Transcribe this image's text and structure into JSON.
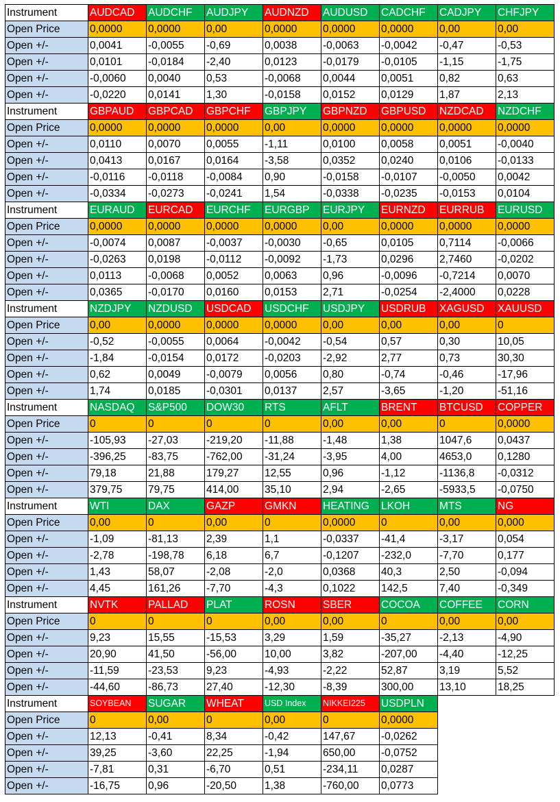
{
  "labels": {
    "instrument": "Instrument",
    "open_price": "Open Price",
    "delta": "Open +/-"
  },
  "colors": {
    "red": "#ff0000",
    "green": "#00b050",
    "open_price": "#ffc000",
    "label_blue": "#c5d9f1"
  },
  "blocks": [
    {
      "instruments": [
        {
          "name": "AUDCAD",
          "color": "red"
        },
        {
          "name": "AUDCHF",
          "color": "green"
        },
        {
          "name": "AUDJPY",
          "color": "green"
        },
        {
          "name": "AUDNZD",
          "color": "red"
        },
        {
          "name": "AUDUSD",
          "color": "green"
        },
        {
          "name": "CADCHF",
          "color": "green"
        },
        {
          "name": "CADJPY",
          "color": "green"
        },
        {
          "name": "CHFJPY",
          "color": "green"
        }
      ],
      "open_price": [
        "0,0000",
        "0,0000",
        "0,00",
        "0,0000",
        "0,0000",
        "0,0000",
        "0,00",
        "0,00"
      ],
      "deltas": [
        [
          "0,0041",
          "-0,0055",
          "-0,69",
          "0,0038",
          "-0,0063",
          "-0,0042",
          "-0,47",
          "-0,53"
        ],
        [
          "0,0101",
          "-0,0184",
          "-2,40",
          "0,0123",
          "-0,0179",
          "-0,0105",
          "-1,15",
          "-1,75"
        ],
        [
          "-0,0060",
          "0,0040",
          "0,53",
          "-0,0068",
          "0,0044",
          "0,0051",
          "0,82",
          "0,63"
        ],
        [
          "-0,0220",
          "0,0141",
          "1,30",
          "-0,0158",
          "0,0152",
          "0,0129",
          "1,87",
          "2,13"
        ]
      ]
    },
    {
      "instruments": [
        {
          "name": "GBPAUD",
          "color": "red"
        },
        {
          "name": "GBPCAD",
          "color": "red"
        },
        {
          "name": "GBPCHF",
          "color": "red"
        },
        {
          "name": "GBPJPY",
          "color": "green"
        },
        {
          "name": "GBPNZD",
          "color": "red"
        },
        {
          "name": "GBPUSD",
          "color": "red"
        },
        {
          "name": "NZDCAD",
          "color": "red"
        },
        {
          "name": "NZDCHF",
          "color": "green"
        }
      ],
      "open_price": [
        "0,0000",
        "0,0000",
        "0,0000",
        "0,00",
        "0,0000",
        "0,0000",
        "0,0000",
        "0,0000"
      ],
      "deltas": [
        [
          "0,0110",
          "0,0070",
          "0,0055",
          "-1,11",
          "0,0100",
          "0,0058",
          "0,0051",
          "-0,0040"
        ],
        [
          "0,0413",
          "0,0167",
          "0,0164",
          "-3,58",
          "0,0352",
          "0,0240",
          "0,0106",
          "-0,0133"
        ],
        [
          "-0,0116",
          "-0,0118",
          "-0,0084",
          "0,90",
          "-0,0158",
          "-0,0107",
          "-0,0050",
          "0,0042"
        ],
        [
          "-0,0334",
          "-0,0273",
          "-0,0241",
          "1,54",
          "-0,0338",
          "-0,0235",
          "-0,0153",
          "0,0104"
        ]
      ]
    },
    {
      "instruments": [
        {
          "name": "EURAUD",
          "color": "green"
        },
        {
          "name": "EURCAD",
          "color": "red"
        },
        {
          "name": "EURCHF",
          "color": "green"
        },
        {
          "name": "EURGBP",
          "color": "green"
        },
        {
          "name": "EURJPY",
          "color": "green"
        },
        {
          "name": "EURNZD",
          "color": "red"
        },
        {
          "name": "EURRUB",
          "color": "red"
        },
        {
          "name": "EURUSD",
          "color": "green"
        }
      ],
      "open_price": [
        "0,0000",
        "0,0000",
        "0,0000",
        "0,0000",
        "0,00",
        "0,0000",
        "0,0000",
        "0,0000"
      ],
      "deltas": [
        [
          "-0,0074",
          "0,0087",
          "-0,0037",
          "-0,0030",
          "-0,65",
          "0,0105",
          "0,7114",
          "-0,0066"
        ],
        [
          "-0,0263",
          "0,0198",
          "-0,0112",
          "-0,0092",
          "-1,73",
          "0,0296",
          "2,7460",
          "-0,0202"
        ],
        [
          "0,0113",
          "-0,0068",
          "0,0052",
          "0,0063",
          "0,96",
          "-0,0096",
          "-0,7214",
          "0,0070"
        ],
        [
          "0,0365",
          "-0,0170",
          "0,0160",
          "0,0153",
          "2,71",
          "-0,0254",
          "-2,4000",
          "0,0228"
        ]
      ]
    },
    {
      "instruments": [
        {
          "name": "NZDJPY",
          "color": "green"
        },
        {
          "name": "NZDUSD",
          "color": "green"
        },
        {
          "name": "USDCAD",
          "color": "red"
        },
        {
          "name": "USDCHF",
          "color": "green"
        },
        {
          "name": "USDJPY",
          "color": "green"
        },
        {
          "name": "USDRUB",
          "color": "red"
        },
        {
          "name": "XAGUSD",
          "color": "red"
        },
        {
          "name": "XAUUSD",
          "color": "red"
        }
      ],
      "open_price": [
        "0,00",
        "0,0000",
        "0,0000",
        "0,0000",
        "0,00",
        "0,00",
        "0,00",
        "0"
      ],
      "deltas": [
        [
          "-0,52",
          "-0,0055",
          "0,0064",
          "-0,0042",
          "-0,54",
          "0,57",
          "0,30",
          "10,05"
        ],
        [
          "-1,84",
          "-0,0154",
          "0,0172",
          "-0,0203",
          "-2,92",
          "2,77",
          "0,73",
          "30,30"
        ],
        [
          "0,62",
          "0,0049",
          "-0,0079",
          "0,0056",
          "0,80",
          "-0,74",
          "-0,46",
          "-17,96"
        ],
        [
          "1,74",
          "0,0185",
          "-0,0301",
          "0,0137",
          "2,57",
          "-3,65",
          "-1,20",
          "-51,16"
        ]
      ]
    },
    {
      "instruments": [
        {
          "name": "NASDAQ",
          "color": "green"
        },
        {
          "name": "S&P500",
          "color": "green"
        },
        {
          "name": "DOW30",
          "color": "green"
        },
        {
          "name": "RTS",
          "color": "green"
        },
        {
          "name": "AFLT",
          "color": "green"
        },
        {
          "name": "BRENT",
          "color": "red"
        },
        {
          "name": "BTCUSD",
          "color": "red"
        },
        {
          "name": "COPPER",
          "color": "red"
        }
      ],
      "open_price": [
        "0",
        "0",
        "0",
        "0",
        "0,00",
        "0,00",
        "0",
        "0,0000"
      ],
      "deltas": [
        [
          "-105,93",
          "-27,03",
          "-219,20",
          "-11,88",
          "-1,48",
          "1,38",
          "1047,6",
          "0,0437"
        ],
        [
          "-396,25",
          "-83,75",
          "-762,00",
          "-31,24",
          "-3,95",
          "4,00",
          "4653,0",
          "0,1280"
        ],
        [
          "79,18",
          "21,88",
          "179,27",
          "12,55",
          "0,96",
          "-1,12",
          "-1136,8",
          "-0,0312"
        ],
        [
          "379,75",
          "79,75",
          "414,00",
          "35,10",
          "2,94",
          "-2,65",
          "-5933,5",
          "-0,0750"
        ]
      ]
    },
    {
      "instruments": [
        {
          "name": "WTI",
          "color": "green"
        },
        {
          "name": "DAX",
          "color": "green"
        },
        {
          "name": "GAZP",
          "color": "red"
        },
        {
          "name": "GMKN",
          "color": "red"
        },
        {
          "name": "HEATING",
          "color": "green"
        },
        {
          "name": "LKOH",
          "color": "green"
        },
        {
          "name": "MTS",
          "color": "green"
        },
        {
          "name": "NG",
          "color": "red"
        }
      ],
      "open_price": [
        "0,00",
        "0",
        "0,00",
        "0",
        "0,0000",
        "0",
        "0,00",
        "0,000"
      ],
      "deltas": [
        [
          "-1,09",
          "-81,13",
          "2,39",
          "1,1",
          "-0,0337",
          "-41,4",
          "-3,17",
          "0,054"
        ],
        [
          "-2,78",
          "-198,78",
          "6,18",
          "6,7",
          "-0,1207",
          "-232,0",
          "-7,70",
          "0,177"
        ],
        [
          "1,43",
          "58,07",
          "-2,08",
          "-2,0",
          "0,0368",
          "40,3",
          "2,50",
          "-0,094"
        ],
        [
          "4,45",
          "161,26",
          "-7,70",
          "-4,3",
          "0,1022",
          "142,5",
          "7,40",
          "-0,349"
        ]
      ]
    },
    {
      "instruments": [
        {
          "name": "NVTK",
          "color": "red"
        },
        {
          "name": "PALLAD",
          "color": "red"
        },
        {
          "name": "PLAT",
          "color": "green"
        },
        {
          "name": "ROSN",
          "color": "red"
        },
        {
          "name": "SBER",
          "color": "red"
        },
        {
          "name": "COCOA",
          "color": "green"
        },
        {
          "name": "COFFEE",
          "color": "green"
        },
        {
          "name": "CORN",
          "color": "green"
        }
      ],
      "open_price": [
        "0",
        "0",
        "0",
        "0,00",
        "0,00",
        "0",
        "0,00",
        "0,00"
      ],
      "deltas": [
        [
          "9,23",
          "15,55",
          "-15,53",
          "3,29",
          "1,59",
          "-35,27",
          "-2,13",
          "-4,90"
        ],
        [
          "20,90",
          "41,50",
          "-56,00",
          "10,00",
          "3,82",
          "-207,00",
          "-4,40",
          "-12,25"
        ],
        [
          "-11,59",
          "-23,53",
          "9,23",
          "-4,93",
          "-2,22",
          "52,87",
          "3,19",
          "5,52"
        ],
        [
          "-44,60",
          "-86,73",
          "27,40",
          "-12,30",
          "-8,39",
          "300,00",
          "13,10",
          "18,25"
        ]
      ]
    },
    {
      "instruments": [
        {
          "name": "SOYBEAN",
          "color": "red",
          "small": true
        },
        {
          "name": "SUGAR",
          "color": "green"
        },
        {
          "name": "WHEAT",
          "color": "red"
        },
        {
          "name": "USD Index",
          "color": "green",
          "small": true
        },
        {
          "name": "NIKKEI225",
          "color": "red",
          "small": true
        },
        {
          "name": "USDPLN",
          "color": "green"
        }
      ],
      "open_price": [
        "0",
        "0,00",
        "0",
        "0,00",
        "0",
        "0,0000"
      ],
      "deltas": [
        [
          "12,13",
          "-0,41",
          "8,34",
          "-0,42",
          "147,67",
          "-0,0262"
        ],
        [
          "39,25",
          "-3,60",
          "22,25",
          "-1,94",
          "650,00",
          "-0,0752"
        ],
        [
          "-7,81",
          "0,31",
          "-6,70",
          "0,51",
          "-234,11",
          "0,0287"
        ],
        [
          "-16,75",
          "0,96",
          "-20,50",
          "1,38",
          "-760,00",
          "0,0773"
        ]
      ]
    }
  ]
}
